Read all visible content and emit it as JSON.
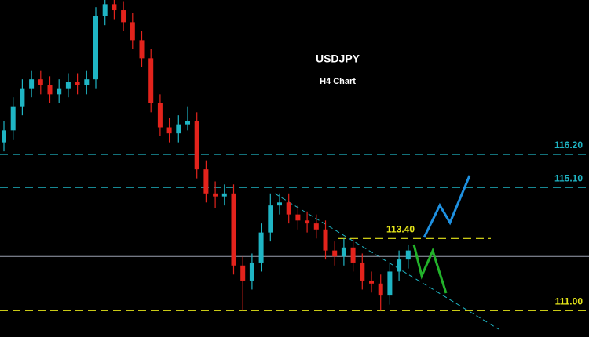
{
  "chart_data": {
    "type": "candlestick",
    "title": "USDJPY",
    "subtitle": "H4 Chart",
    "open": [
      116.6,
      117.0,
      117.8,
      118.4,
      118.7,
      118.5,
      118.2,
      118.4,
      118.6,
      118.5,
      118.7,
      120.8,
      121.2,
      121.0,
      120.6,
      120.0,
      119.4,
      117.9,
      117.1,
      116.9,
      117.2,
      117.3,
      115.7,
      114.9,
      114.8,
      114.9,
      112.5,
      112.0,
      112.6,
      113.6,
      114.5,
      114.6,
      114.2,
      114.0,
      113.9,
      113.7,
      113.0,
      112.8,
      113.1,
      112.6,
      112.0,
      111.9,
      111.5,
      112.3,
      112.7
    ],
    "high": [
      117.3,
      118.1,
      118.7,
      119.0,
      119.0,
      118.8,
      118.7,
      118.9,
      118.9,
      119.0,
      121.1,
      121.5,
      121.4,
      121.3,
      120.9,
      120.3,
      119.7,
      118.2,
      117.4,
      117.5,
      117.8,
      117.6,
      116.0,
      115.3,
      115.2,
      115.2,
      112.8,
      112.9,
      113.9,
      114.9,
      114.9,
      114.9,
      114.5,
      114.3,
      114.2,
      114.0,
      113.3,
      113.4,
      113.4,
      112.9,
      112.3,
      112.2,
      112.6,
      113.0,
      113.2
    ],
    "low": [
      116.3,
      116.7,
      117.5,
      118.1,
      118.2,
      117.9,
      117.9,
      118.1,
      118.2,
      118.2,
      118.4,
      120.5,
      120.7,
      120.3,
      119.7,
      119.1,
      117.6,
      116.8,
      116.6,
      116.6,
      117.0,
      115.4,
      114.6,
      114.4,
      114.5,
      112.2,
      111.0,
      111.7,
      112.3,
      113.3,
      114.2,
      113.9,
      113.7,
      113.6,
      113.4,
      112.7,
      112.5,
      112.5,
      112.3,
      111.7,
      111.6,
      111.0,
      111.2,
      112.0,
      112.4
    ],
    "close": [
      117.0,
      117.8,
      118.4,
      118.7,
      118.5,
      118.2,
      118.4,
      118.6,
      118.5,
      118.7,
      120.8,
      121.2,
      121.0,
      120.6,
      120.0,
      119.4,
      117.9,
      117.1,
      116.9,
      117.2,
      117.3,
      115.7,
      114.9,
      114.8,
      114.9,
      112.5,
      112.0,
      112.6,
      113.6,
      114.5,
      114.6,
      114.2,
      114.0,
      113.9,
      113.7,
      113.0,
      112.8,
      113.1,
      112.6,
      112.0,
      111.9,
      111.5,
      112.3,
      112.7,
      113.0
    ],
    "up_color": "#1fb5c4",
    "down_color": "#e3231c",
    "ylim": [
      110.12,
      121.34
    ],
    "price_line": 112.8,
    "levels": [
      {
        "value": 116.2,
        "label": "116.20",
        "color": "#1fb5c4"
      },
      {
        "value": 115.1,
        "label": "115.10",
        "color": "#1fb5c4"
      },
      {
        "value": 113.4,
        "label": "113.40",
        "color": "#e6e61a"
      },
      {
        "value": 111.0,
        "label": "111.00",
        "color": "#e6e61a"
      }
    ]
  }
}
